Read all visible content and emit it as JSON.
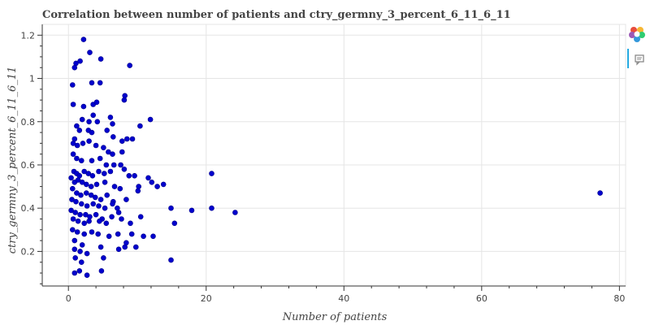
{
  "chart_data": {
    "type": "scatter",
    "title": "Correlation between number of patients and ctry_germny_3_percent_6_11_6_11",
    "xlabel": "Number of patients",
    "ylabel": "ctry_germny_3_percent_6_11_6_11",
    "xlim": [
      -3.8,
      80.9
    ],
    "ylim": [
      0.04,
      1.25
    ],
    "xticks": [
      0,
      20,
      40,
      60,
      80
    ],
    "yticks": [
      0.2,
      0.4,
      0.6,
      0.8,
      1,
      1.2
    ],
    "grid": true,
    "point_color": "#0000cd",
    "points": [
      [
        2.2,
        1.18
      ],
      [
        3.1,
        1.12
      ],
      [
        4.7,
        1.09
      ],
      [
        1.1,
        1.07
      ],
      [
        0.9,
        1.05
      ],
      [
        1.7,
        1.08
      ],
      [
        8.9,
        1.06
      ],
      [
        0.6,
        0.97
      ],
      [
        3.4,
        0.98
      ],
      [
        4.6,
        0.98
      ],
      [
        8.2,
        0.92
      ],
      [
        8.1,
        0.9
      ],
      [
        0.7,
        0.88
      ],
      [
        2.2,
        0.87
      ],
      [
        3.6,
        0.88
      ],
      [
        4.1,
        0.89
      ],
      [
        2.0,
        0.81
      ],
      [
        3.0,
        0.8
      ],
      [
        3.6,
        0.83
      ],
      [
        4.2,
        0.8
      ],
      [
        6.1,
        0.82
      ],
      [
        6.4,
        0.79
      ],
      [
        11.9,
        0.81
      ],
      [
        10.4,
        0.78
      ],
      [
        1.2,
        0.78
      ],
      [
        1.6,
        0.76
      ],
      [
        2.9,
        0.76
      ],
      [
        3.4,
        0.75
      ],
      [
        5.6,
        0.76
      ],
      [
        6.5,
        0.73
      ],
      [
        7.8,
        0.71
      ],
      [
        8.5,
        0.72
      ],
      [
        9.3,
        0.72
      ],
      [
        0.7,
        0.7
      ],
      [
        0.9,
        0.72
      ],
      [
        1.3,
        0.69
      ],
      [
        2.1,
        0.7
      ],
      [
        3.0,
        0.71
      ],
      [
        4.0,
        0.69
      ],
      [
        5.1,
        0.68
      ],
      [
        5.8,
        0.66
      ],
      [
        6.4,
        0.65
      ],
      [
        7.8,
        0.66
      ],
      [
        0.7,
        0.65
      ],
      [
        1.2,
        0.63
      ],
      [
        1.9,
        0.62
      ],
      [
        3.4,
        0.62
      ],
      [
        4.6,
        0.63
      ],
      [
        5.5,
        0.6
      ],
      [
        6.6,
        0.6
      ],
      [
        7.6,
        0.6
      ],
      [
        8.1,
        0.58
      ],
      [
        0.8,
        0.57
      ],
      [
        1.2,
        0.56
      ],
      [
        1.6,
        0.55
      ],
      [
        2.3,
        0.57
      ],
      [
        2.9,
        0.56
      ],
      [
        3.5,
        0.55
      ],
      [
        4.4,
        0.57
      ],
      [
        5.2,
        0.56
      ],
      [
        6.1,
        0.57
      ],
      [
        8.8,
        0.55
      ],
      [
        9.6,
        0.55
      ],
      [
        11.6,
        0.54
      ],
      [
        20.8,
        0.56
      ],
      [
        0.4,
        0.54
      ],
      [
        0.9,
        0.52
      ],
      [
        1.4,
        0.53
      ],
      [
        2.0,
        0.52
      ],
      [
        2.6,
        0.51
      ],
      [
        3.3,
        0.5
      ],
      [
        4.1,
        0.51
      ],
      [
        5.3,
        0.52
      ],
      [
        6.7,
        0.5
      ],
      [
        7.5,
        0.49
      ],
      [
        10.2,
        0.5
      ],
      [
        12.1,
        0.52
      ],
      [
        12.9,
        0.5
      ],
      [
        13.8,
        0.51
      ],
      [
        0.6,
        0.49
      ],
      [
        1.2,
        0.47
      ],
      [
        1.8,
        0.46
      ],
      [
        2.6,
        0.47
      ],
      [
        3.3,
        0.46
      ],
      [
        3.9,
        0.45
      ],
      [
        4.7,
        0.44
      ],
      [
        5.6,
        0.46
      ],
      [
        6.5,
        0.43
      ],
      [
        8.4,
        0.44
      ],
      [
        10.1,
        0.48
      ],
      [
        77.2,
        0.47
      ],
      [
        0.5,
        0.44
      ],
      [
        1.1,
        0.43
      ],
      [
        1.9,
        0.42
      ],
      [
        2.7,
        0.41
      ],
      [
        3.6,
        0.42
      ],
      [
        4.4,
        0.41
      ],
      [
        5.3,
        0.4
      ],
      [
        6.4,
        0.42
      ],
      [
        7.1,
        0.4
      ],
      [
        14.9,
        0.4
      ],
      [
        20.8,
        0.4
      ],
      [
        0.4,
        0.39
      ],
      [
        1.0,
        0.38
      ],
      [
        1.7,
        0.37
      ],
      [
        2.5,
        0.37
      ],
      [
        3.1,
        0.36
      ],
      [
        4.0,
        0.37
      ],
      [
        4.9,
        0.35
      ],
      [
        6.3,
        0.36
      ],
      [
        7.3,
        0.38
      ],
      [
        7.7,
        0.35
      ],
      [
        10.5,
        0.36
      ],
      [
        17.9,
        0.39
      ],
      [
        24.2,
        0.38
      ],
      [
        0.7,
        0.35
      ],
      [
        1.4,
        0.34
      ],
      [
        2.3,
        0.33
      ],
      [
        3.0,
        0.34
      ],
      [
        4.5,
        0.34
      ],
      [
        5.5,
        0.33
      ],
      [
        9.0,
        0.33
      ],
      [
        15.4,
        0.33
      ],
      [
        0.6,
        0.3
      ],
      [
        1.3,
        0.29
      ],
      [
        2.3,
        0.28
      ],
      [
        3.4,
        0.29
      ],
      [
        4.3,
        0.28
      ],
      [
        5.9,
        0.27
      ],
      [
        7.2,
        0.28
      ],
      [
        9.2,
        0.28
      ],
      [
        10.9,
        0.27
      ],
      [
        12.3,
        0.27
      ],
      [
        0.9,
        0.25
      ],
      [
        2.0,
        0.23
      ],
      [
        4.7,
        0.22
      ],
      [
        7.3,
        0.21
      ],
      [
        8.2,
        0.22
      ],
      [
        8.4,
        0.24
      ],
      [
        9.8,
        0.22
      ],
      [
        0.9,
        0.21
      ],
      [
        1.7,
        0.2
      ],
      [
        2.7,
        0.19
      ],
      [
        5.1,
        0.17
      ],
      [
        14.9,
        0.16
      ],
      [
        1.0,
        0.17
      ],
      [
        1.9,
        0.15
      ],
      [
        0.9,
        0.1
      ],
      [
        1.6,
        0.11
      ],
      [
        2.7,
        0.09
      ],
      [
        4.8,
        0.11
      ]
    ]
  },
  "toolbar": {
    "logo_icon": "bokeh-logo-icon",
    "hover_icon": "hover-tool-icon",
    "active_color": "#26aae1"
  }
}
